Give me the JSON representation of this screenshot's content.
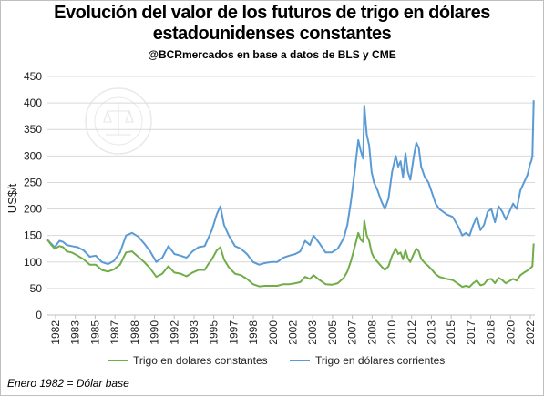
{
  "title_line1": "Evolución del valor de los futuros de trigo en dólares",
  "title_line2": "estadounidenses constantes",
  "subtitle": "@BCRmercados en base a datos de BLS y CME",
  "footnote": "Enero 1982 = Dólar base",
  "watermark_text": "BOLSA DE COMERCIO DE ROSARIO",
  "colors": {
    "corrientes": "#5b9bd5",
    "constantes": "#70ad47",
    "grid": "#d9d9d9"
  },
  "chart_data": {
    "type": "line",
    "ylabel": "US$/t",
    "ylim": [
      0,
      450
    ],
    "y_ticks": [
      0,
      50,
      100,
      150,
      200,
      250,
      300,
      350,
      400,
      450
    ],
    "xlim": [
      1982,
      2022.3
    ],
    "x_ticks": [
      "1982",
      "1983",
      "1985",
      "1987",
      "1988",
      "1990",
      "1992",
      "1993",
      "1995",
      "1997",
      "1998",
      "2000",
      "2002",
      "2003",
      "2005",
      "2007",
      "2008",
      "2010",
      "2012",
      "2013",
      "2015",
      "2017",
      "2018",
      "2020",
      "2022"
    ],
    "grid": true,
    "legend": "bottom",
    "series": [
      {
        "name": "Trigo en dólares corrientes",
        "x": [
          1982.0,
          1982.3,
          1982.6,
          1983.0,
          1983.3,
          1983.6,
          1984.0,
          1984.5,
          1985.0,
          1985.5,
          1986.0,
          1986.5,
          1987.0,
          1987.5,
          1988.0,
          1988.5,
          1989.0,
          1989.5,
          1990.0,
          1990.5,
          1991.0,
          1991.5,
          1992.0,
          1992.5,
          1993.0,
          1993.5,
          1994.0,
          1994.5,
          1995.0,
          1995.3,
          1995.6,
          1996.0,
          1996.3,
          1996.6,
          1997.0,
          1997.5,
          1998.0,
          1998.5,
          1999.0,
          1999.5,
          2000.0,
          2000.5,
          2001.0,
          2001.5,
          2002.0,
          2002.5,
          2002.9,
          2003.3,
          2003.7,
          2004.0,
          2004.5,
          2005.0,
          2005.5,
          2006.0,
          2006.5,
          2006.8,
          2007.1,
          2007.4,
          2007.7,
          2007.9,
          2008.1,
          2008.2,
          2008.4,
          2008.6,
          2008.8,
          2009.0,
          2009.3,
          2009.6,
          2009.9,
          2010.2,
          2010.5,
          2010.8,
          2011.0,
          2011.2,
          2011.4,
          2011.6,
          2011.8,
          2012.0,
          2012.3,
          2012.5,
          2012.7,
          2012.9,
          2013.2,
          2013.5,
          2013.8,
          2014.1,
          2014.4,
          2014.7,
          2015.0,
          2015.5,
          2016.0,
          2016.3,
          2016.6,
          2016.9,
          2017.2,
          2017.5,
          2017.8,
          2018.1,
          2018.4,
          2018.7,
          2019.0,
          2019.3,
          2019.6,
          2019.9,
          2020.2,
          2020.5,
          2020.8,
          2021.1,
          2021.4,
          2021.7,
          2021.9,
          2022.0,
          2022.1,
          2022.2
        ],
        "values": [
          142,
          135,
          128,
          140,
          138,
          132,
          130,
          128,
          122,
          110,
          112,
          100,
          96,
          102,
          118,
          150,
          155,
          148,
          135,
          120,
          100,
          108,
          130,
          115,
          112,
          108,
          120,
          128,
          130,
          145,
          160,
          190,
          205,
          170,
          150,
          130,
          125,
          115,
          100,
          95,
          98,
          100,
          100,
          108,
          112,
          115,
          120,
          140,
          132,
          150,
          135,
          118,
          118,
          125,
          145,
          170,
          215,
          270,
          330,
          310,
          295,
          395,
          340,
          320,
          270,
          250,
          235,
          215,
          200,
          220,
          270,
          300,
          280,
          290,
          260,
          305,
          270,
          255,
          300,
          325,
          315,
          280,
          260,
          250,
          230,
          210,
          200,
          195,
          190,
          185,
          165,
          150,
          155,
          150,
          170,
          185,
          160,
          170,
          195,
          200,
          175,
          205,
          195,
          180,
          195,
          210,
          200,
          235,
          250,
          265,
          285,
          290,
          300,
          405
        ]
      },
      {
        "name": "Trigo en dolares constantes",
        "x": [
          1982.0,
          1982.3,
          1982.6,
          1983.0,
          1983.3,
          1983.6,
          1984.0,
          1984.5,
          1985.0,
          1985.5,
          1986.0,
          1986.5,
          1987.0,
          1987.5,
          1988.0,
          1988.5,
          1989.0,
          1989.5,
          1990.0,
          1990.5,
          1991.0,
          1991.5,
          1992.0,
          1992.5,
          1993.0,
          1993.5,
          1994.0,
          1994.5,
          1995.0,
          1995.3,
          1995.6,
          1996.0,
          1996.3,
          1996.6,
          1997.0,
          1997.5,
          1998.0,
          1998.5,
          1999.0,
          1999.5,
          2000.0,
          2000.5,
          2001.0,
          2001.5,
          2002.0,
          2002.5,
          2002.9,
          2003.3,
          2003.7,
          2004.0,
          2004.5,
          2005.0,
          2005.5,
          2006.0,
          2006.5,
          2006.8,
          2007.1,
          2007.4,
          2007.7,
          2007.9,
          2008.1,
          2008.2,
          2008.4,
          2008.6,
          2008.8,
          2009.0,
          2009.3,
          2009.6,
          2009.9,
          2010.2,
          2010.5,
          2010.8,
          2011.0,
          2011.2,
          2011.4,
          2011.6,
          2011.8,
          2012.0,
          2012.3,
          2012.5,
          2012.7,
          2012.9,
          2013.2,
          2013.5,
          2013.8,
          2014.1,
          2014.4,
          2014.7,
          2015.0,
          2015.5,
          2016.0,
          2016.3,
          2016.6,
          2016.9,
          2017.2,
          2017.5,
          2017.8,
          2018.1,
          2018.4,
          2018.7,
          2019.0,
          2019.3,
          2019.6,
          2019.9,
          2020.2,
          2020.5,
          2020.8,
          2021.1,
          2021.4,
          2021.7,
          2021.9,
          2022.0,
          2022.1,
          2022.2
        ],
        "values": [
          142,
          133,
          125,
          130,
          128,
          120,
          118,
          112,
          105,
          95,
          95,
          85,
          82,
          86,
          95,
          118,
          120,
          110,
          100,
          88,
          72,
          78,
          92,
          80,
          78,
          73,
          80,
          85,
          85,
          96,
          105,
          122,
          128,
          105,
          90,
          78,
          75,
          68,
          58,
          54,
          55,
          55,
          55,
          58,
          58,
          60,
          62,
          72,
          68,
          75,
          66,
          58,
          57,
          60,
          70,
          82,
          102,
          128,
          155,
          142,
          138,
          178,
          150,
          140,
          118,
          108,
          100,
          92,
          85,
          92,
          112,
          125,
          115,
          118,
          105,
          122,
          107,
          100,
          116,
          125,
          120,
          106,
          98,
          92,
          85,
          77,
          72,
          70,
          68,
          66,
          58,
          53,
          55,
          53,
          60,
          65,
          56,
          58,
          67,
          68,
          60,
          70,
          66,
          60,
          64,
          68,
          65,
          75,
          80,
          84,
          88,
          90,
          92,
          135
        ]
      }
    ]
  }
}
